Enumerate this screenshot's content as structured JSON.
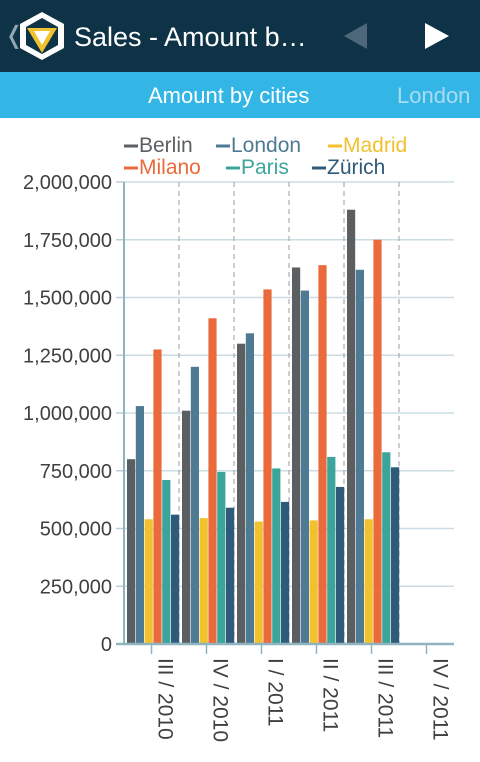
{
  "header": {
    "title": "Sales - Amount b…",
    "back_glyph": "❬",
    "icon": "yellow-v-logo-icon",
    "prev_icon": "triangle-left-icon",
    "next_icon": "triangle-right-icon"
  },
  "tabs": [
    {
      "label": "Amount by cities",
      "active": true
    },
    {
      "label": "London",
      "active": false
    }
  ],
  "colors": {
    "titlebar": "#0f3346",
    "tabbar": "#33b5e5",
    "Berlin": "#5b5f61",
    "London": "#4e7a94",
    "Madrid": "#f2c12e",
    "Milano": "#ea6a3c",
    "Paris": "#3ba59b",
    "Zürich": "#2f5a7a"
  },
  "chart_data": {
    "type": "bar",
    "categories": [
      "III / 2010",
      "IV / 2010",
      "I / 2011",
      "II / 2011",
      "III / 2011",
      "IV / 2011"
    ],
    "y_ticks": [
      "0",
      "250,000",
      "500,000",
      "750,000",
      "1,000,000",
      "1,250,000",
      "1,500,000",
      "1,750,000",
      "2,000,000"
    ],
    "ylim": [
      0,
      2000000
    ],
    "legend_position": "top",
    "grid": true,
    "series": [
      {
        "name": "Berlin",
        "values": [
          800000,
          1010000,
          1300000,
          1630000,
          1880000,
          null
        ]
      },
      {
        "name": "London",
        "values": [
          1030000,
          1200000,
          1345000,
          1530000,
          1620000,
          null
        ]
      },
      {
        "name": "Madrid",
        "values": [
          540000,
          545000,
          530000,
          535000,
          540000,
          null
        ]
      },
      {
        "name": "Milano",
        "values": [
          1275000,
          1410000,
          1535000,
          1640000,
          1750000,
          null
        ]
      },
      {
        "name": "Paris",
        "values": [
          710000,
          745000,
          760000,
          810000,
          830000,
          null
        ]
      },
      {
        "name": "Zürich",
        "values": [
          560000,
          590000,
          615000,
          680000,
          765000,
          null
        ]
      }
    ]
  }
}
